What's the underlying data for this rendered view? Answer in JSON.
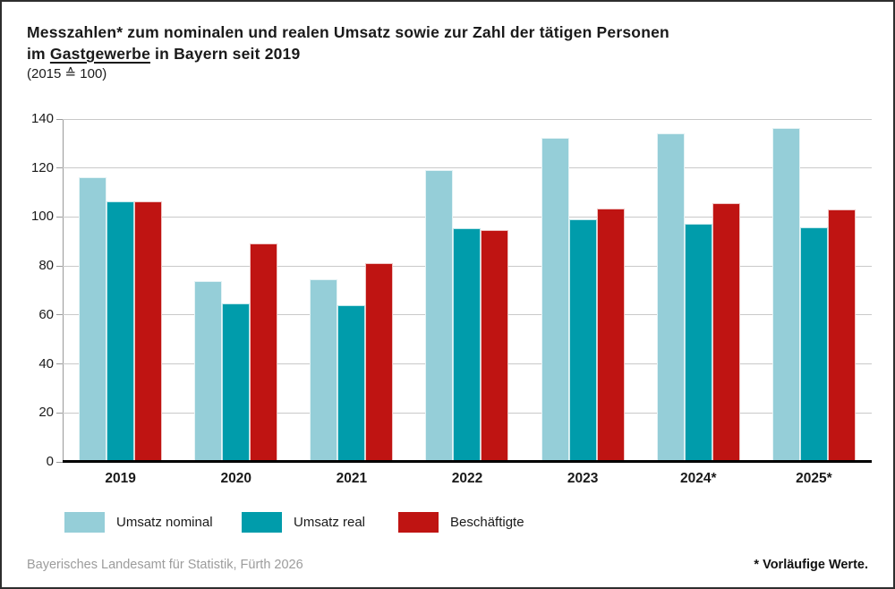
{
  "title": {
    "line1": "Messzahlen* zum nominalen und realen Umsatz sowie zur Zahl der tätigen Personen",
    "line2_pre": "im ",
    "line2_underline": "Gastgewerbe",
    "line2_post": " in Bayern seit 2019",
    "line3": "(2015 ≙ 100)"
  },
  "chart_data": {
    "type": "bar",
    "categories": [
      "2019",
      "2020",
      "2021",
      "2022",
      "2023",
      "2024*",
      "2025*"
    ],
    "series": [
      {
        "name": "Umsatz nominal",
        "color": "#95ced8",
        "values": [
          116.4,
          73.8,
          74.5,
          119.2,
          132.5,
          134.0,
          136.5
        ]
      },
      {
        "name": "Umsatz real",
        "color": "#009cab",
        "values": [
          106.5,
          64.8,
          64.1,
          95.4,
          99.0,
          97.4,
          95.8
        ]
      },
      {
        "name": "Beschäftigte",
        "color": "#bf1412",
        "values": [
          106.5,
          89.1,
          81.3,
          94.6,
          103.4,
          105.8,
          103.0
        ]
      }
    ],
    "ylim": [
      0,
      140
    ],
    "yticks": [
      0,
      20,
      40,
      60,
      80,
      100,
      120,
      140
    ],
    "grid": true,
    "legend_position": "bottom",
    "xlabel": "",
    "ylabel": ""
  },
  "colors": {
    "gridline": "#c9c9c9",
    "axis": "#9a9a9a",
    "baseline": "#000000"
  },
  "footer": {
    "source": "Bayerisches Landesamt für Statistik, Fürth 2026",
    "note": "* Vorläufige Werte."
  }
}
